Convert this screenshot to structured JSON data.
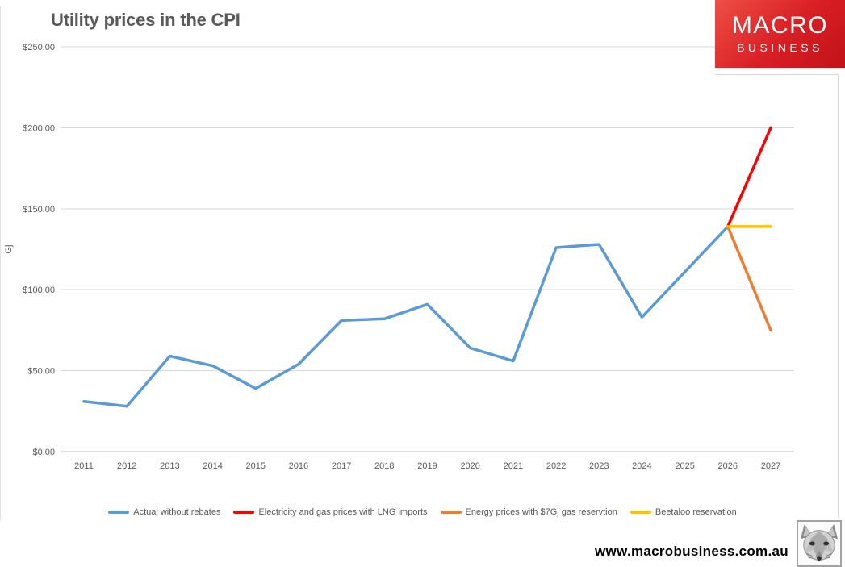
{
  "header": {
    "title": "Utility prices in the CPI"
  },
  "logo": {
    "line1": "MACRO",
    "line2": "BUSINESS",
    "bg_color_top": "#EF4F45",
    "bg_color_bottom": "#C01319",
    "text_color": "#FFFFFF"
  },
  "footer": {
    "url": "www.macrobusiness.com.au"
  },
  "chart_data": {
    "type": "line",
    "title": "Utility prices in the CPI",
    "xlabel": "",
    "ylabel": "Gj",
    "ylim": [
      0,
      250
    ],
    "ytick_step": 50,
    "ytick_labels": [
      "$0.00",
      "$50.00",
      "$100.00",
      "$150.00",
      "$200.00",
      "$250.00"
    ],
    "grid": true,
    "grid_color": "#D9D9D9",
    "axis_text_color": "#595959",
    "legend_position": "bottom",
    "categories": [
      "2011",
      "2012",
      "2013",
      "2014",
      "2015",
      "2016",
      "2017",
      "2018",
      "2019",
      "2020",
      "2021",
      "2022",
      "2023",
      "2024",
      "2025",
      "2026",
      "2027"
    ],
    "series": [
      {
        "name": "Actual without rebates",
        "color": "#5B9BD5",
        "values": [
          31,
          28,
          59,
          53,
          39,
          54,
          81,
          82,
          91,
          64,
          56,
          126,
          128,
          83,
          111,
          139,
          null
        ]
      },
      {
        "name": "Electricity and gas prices with LNG imports",
        "color": "#FF0000",
        "values": [
          null,
          null,
          null,
          null,
          null,
          null,
          null,
          null,
          null,
          null,
          null,
          null,
          null,
          null,
          null,
          139,
          200
        ]
      },
      {
        "name": "Energy prices with $7Gj gas reservtion",
        "color": "#ED7D31",
        "values": [
          null,
          null,
          null,
          null,
          null,
          null,
          null,
          null,
          null,
          null,
          null,
          null,
          null,
          null,
          null,
          139,
          75
        ]
      },
      {
        "name": "Beetaloo reservation",
        "color": "#FFC000",
        "values": [
          null,
          null,
          null,
          null,
          null,
          null,
          null,
          null,
          null,
          null,
          null,
          null,
          null,
          null,
          null,
          139,
          139
        ]
      }
    ]
  }
}
